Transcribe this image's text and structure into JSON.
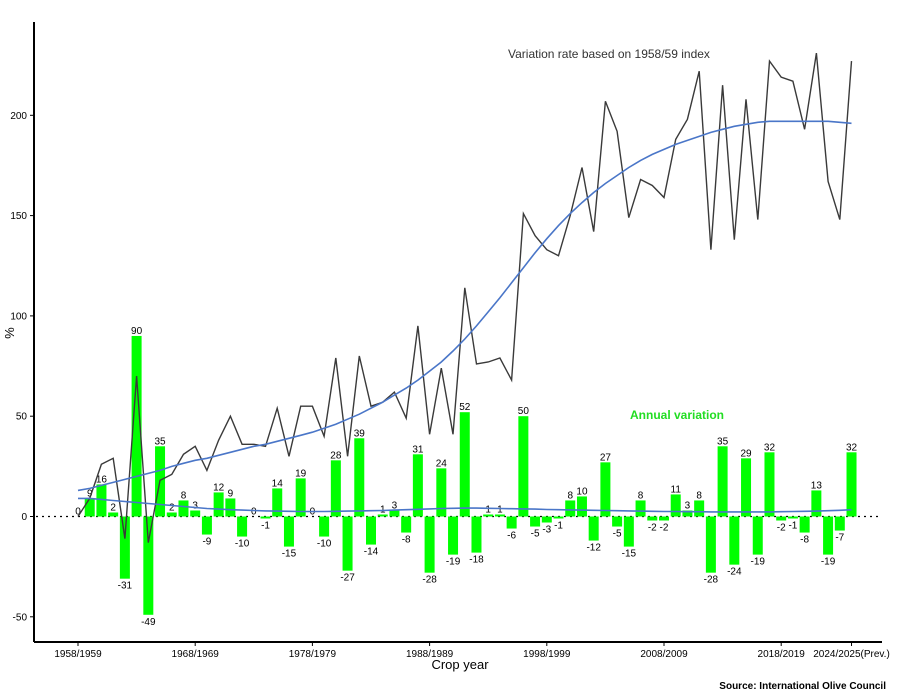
{
  "chart_data": {
    "type": "bar",
    "xlabel": "Crop year",
    "ylabel": "%",
    "ylim": [
      -55,
      245
    ],
    "yticks": [
      -50,
      0,
      50,
      100,
      150,
      200
    ],
    "grid": false,
    "source": "Source: International Olive Council",
    "x_tick_labels": [
      "1958/1959",
      "1968/1969",
      "1978/1979",
      "1988/1989",
      "1998/1999",
      "2008/2009",
      "2018/2019",
      "2024/2025(Prev.)"
    ],
    "x_tick_positions": [
      0,
      10,
      20,
      30,
      40,
      50,
      60,
      66
    ],
    "zero_line_style": "dotted",
    "annotations": {
      "index_label": "Variation rate based on 1958/59 index",
      "annual_label": "Annual variation"
    },
    "colors": {
      "bars": "#00ff00",
      "index_line": "#3a3a3a",
      "trend_line": "#4a76c8",
      "annual_annotation": "#22dd22"
    },
    "series": [
      {
        "name": "Annual variation",
        "kind": "bar",
        "values": [
          0,
          9,
          16,
          2,
          -31,
          90,
          -49,
          35,
          2,
          8,
          3,
          -9,
          12,
          9,
          -10,
          0,
          -1,
          14,
          -15,
          19,
          0,
          -10,
          28,
          -27,
          39,
          -14,
          1,
          3,
          -8,
          31,
          -28,
          24,
          -19,
          52,
          -18,
          1,
          1,
          -6,
          50,
          -5,
          -3,
          -1,
          8,
          10,
          -12,
          27,
          -5,
          -15,
          8,
          -2,
          -2,
          11,
          3,
          8,
          -28,
          35,
          -24,
          29,
          -19,
          32,
          -2,
          -1,
          -8,
          13,
          -19,
          -7,
          32
        ]
      },
      {
        "name": "Variation rate based on 1958/59 index",
        "kind": "line",
        "values": [
          0,
          9,
          26,
          29,
          -11,
          70,
          -13,
          18,
          21,
          31,
          35,
          23,
          38,
          50,
          36,
          36,
          35,
          54,
          30,
          55,
          55,
          40,
          79,
          30,
          80,
          55,
          57,
          62,
          49,
          95,
          41,
          74,
          41,
          114,
          76,
          77,
          79,
          68,
          151,
          140,
          133,
          130,
          150,
          174,
          142,
          207,
          192,
          149,
          168,
          165,
          159,
          188,
          198,
          222,
          133,
          215,
          138,
          208,
          148,
          227,
          219,
          217,
          193,
          231,
          167,
          148,
          227
        ]
      },
      {
        "name": "Index trend",
        "kind": "line",
        "values": [
          13,
          14,
          15.5,
          17,
          18.5,
          20,
          21.5,
          23,
          25,
          26.5,
          28,
          29,
          30.5,
          32,
          33.5,
          35,
          36,
          37.5,
          39,
          40.5,
          42,
          44,
          46,
          48.5,
          51,
          54,
          57,
          60.5,
          64,
          68,
          72.5,
          77,
          82.5,
          88.5,
          95,
          102,
          109,
          116.5,
          124,
          131.5,
          138.5,
          145,
          151,
          156.5,
          161.5,
          166,
          170,
          174,
          177.5,
          180.5,
          183,
          185.5,
          187.5,
          189.5,
          191.5,
          193,
          194.5,
          195.5,
          196.5,
          197,
          197,
          197,
          197,
          197,
          197,
          196.5,
          196
        ]
      },
      {
        "name": "Annual variation trend",
        "kind": "line",
        "values": [
          9,
          9,
          8.5,
          8,
          7.5,
          7,
          6.5,
          6,
          5.5,
          5,
          4.5,
          4,
          3.7,
          3.4,
          3.2,
          3,
          2.8,
          2.7,
          2.6,
          2.5,
          2.5,
          2.5,
          2.6,
          2.7,
          2.8,
          2.9,
          3,
          3.2,
          3.4,
          3.6,
          3.8,
          4,
          4.1,
          4.2,
          4.2,
          4.1,
          4,
          3.9,
          3.8,
          3.7,
          3.5,
          3.4,
          3.3,
          3.2,
          3.1,
          3,
          2.9,
          2.8,
          2.7,
          2.6,
          2.5,
          2.5,
          2.4,
          2.4,
          2.3,
          2.3,
          2.3,
          2.3,
          2.3,
          2.3,
          2.4,
          2.5,
          2.6,
          2.7,
          2.9,
          3.1,
          3.4
        ]
      }
    ]
  }
}
